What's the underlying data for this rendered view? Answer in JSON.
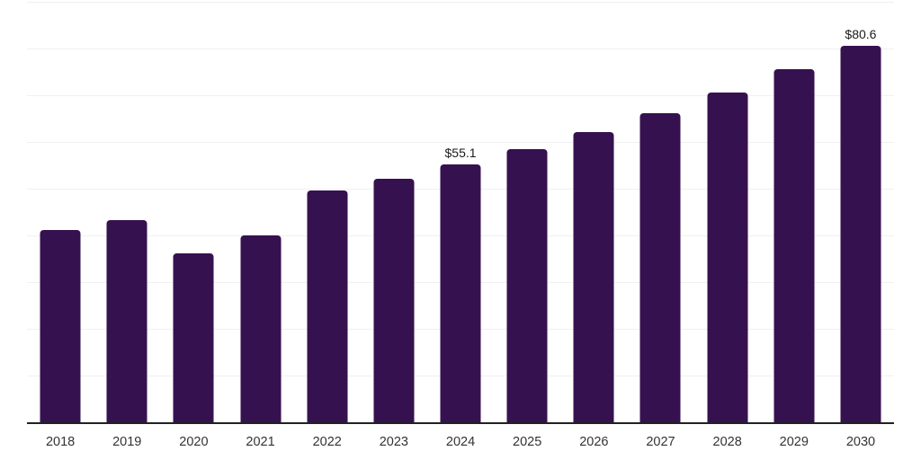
{
  "chart_data": {
    "type": "bar",
    "title": "",
    "xlabel": "",
    "ylabel": "",
    "categories": [
      "2018",
      "2019",
      "2020",
      "2021",
      "2022",
      "2023",
      "2024",
      "2025",
      "2026",
      "2027",
      "2028",
      "2029",
      "2030"
    ],
    "values": [
      41.2,
      43.2,
      36.2,
      40.0,
      49.6,
      52.2,
      55.1,
      58.5,
      62.1,
      66.2,
      70.6,
      75.6,
      80.6
    ],
    "annotations": [
      {
        "category": "2024",
        "text": "$55.1"
      },
      {
        "category": "2030",
        "text": "$80.6"
      }
    ],
    "ylim": [
      0,
      90
    ],
    "gridline_step": 10,
    "grid": "horizontal-only",
    "legend": "none",
    "y_tick_labels_visible": false,
    "colors": {
      "bar": "#36114f",
      "axis_line": "#222222",
      "gridline": "#f0f0f0",
      "value_label": "#1a1a1a",
      "x_tick_label": "#333333",
      "background": "#ffffff"
    }
  }
}
